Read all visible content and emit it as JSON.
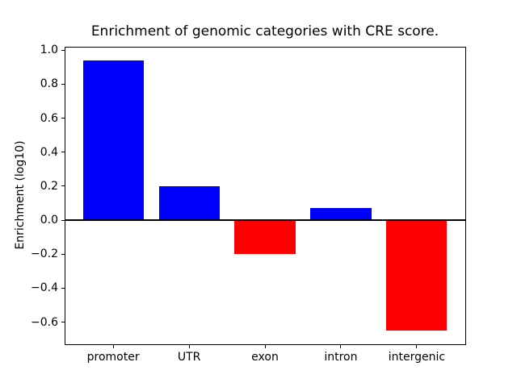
{
  "chart_data": {
    "type": "bar",
    "title": "Enrichment of genomic categories with CRE score.",
    "xlabel": "",
    "ylabel": "Enrichment (log10)",
    "categories": [
      "promoter",
      "UTR",
      "exon",
      "intron",
      "intergenic"
    ],
    "values": [
      0.94,
      0.2,
      -0.2,
      0.07,
      -0.65
    ],
    "bar_colors": [
      "#0000ff",
      "#0000ff",
      "#ff0000",
      "#0000ff",
      "#ff0000"
    ],
    "positive_color": "#0000ff",
    "negative_color": "#ff0000",
    "bar_width": 0.8,
    "xlim": [
      -0.64,
      4.64
    ],
    "ylim": [
      -0.73,
      1.02
    ],
    "yticks": [
      {
        "value": 1.0,
        "label": "1.0"
      },
      {
        "value": 0.8,
        "label": "0.8"
      },
      {
        "value": 0.6,
        "label": "0.6"
      },
      {
        "value": 0.4,
        "label": "0.4"
      },
      {
        "value": 0.2,
        "label": "0.2"
      },
      {
        "value": 0.0,
        "label": "0.0"
      },
      {
        "value": -0.2,
        "label": "−0.2"
      },
      {
        "value": -0.4,
        "label": "−0.4"
      },
      {
        "value": -0.6,
        "label": "−0.6"
      }
    ],
    "zero_line": {
      "value": 0.0,
      "color": "#000000",
      "thickness_px": 2
    },
    "grid": false,
    "legend": null,
    "axis_color": "#000000",
    "background_color": "#ffffff"
  }
}
